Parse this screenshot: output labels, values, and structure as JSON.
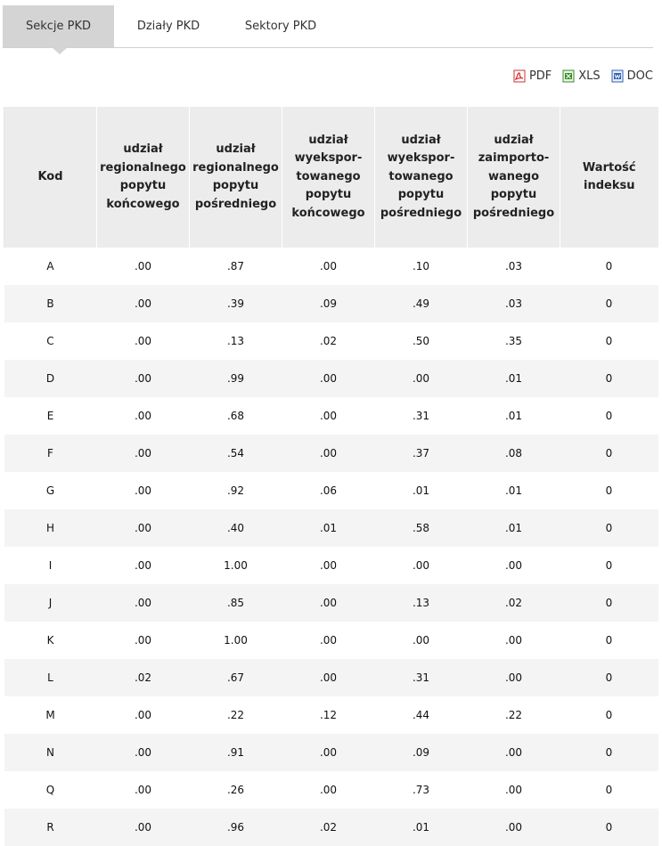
{
  "tabs": [
    {
      "label": "Sekcje PKD",
      "active": true
    },
    {
      "label": "Działy PKD",
      "active": false
    },
    {
      "label": "Sektory PKD",
      "active": false
    }
  ],
  "export": {
    "pdf": "PDF",
    "xls": "XLS",
    "doc": "DOC"
  },
  "colors": {
    "positive": "#5a9e1e",
    "negative": "#d4184a",
    "neutral": "#111111",
    "header_bg": "#ececec",
    "active_tab": "#d4d4d4"
  },
  "table": {
    "headers": [
      [
        "Kod"
      ],
      [
        "udział",
        "regionalnego",
        "popytu",
        "końcowego"
      ],
      [
        "udział",
        "regionalnego",
        "popytu",
        "pośredniego"
      ],
      [
        "udział",
        "wyekspor-",
        "towanego",
        "popytu",
        "końcowego"
      ],
      [
        "udział",
        "wyekspor-",
        "towanego",
        "popytu",
        "pośredniego"
      ],
      [
        "udział",
        "zaimporto-",
        "wanego",
        "popytu",
        "pośredniego"
      ],
      [
        "Wartość",
        "indeksu"
      ]
    ],
    "rows": [
      {
        "kod": "A",
        "cells": [
          [
            ".00",
            "neu"
          ],
          [
            ".87",
            "pos"
          ],
          [
            ".00",
            "neu"
          ],
          [
            ".10",
            "neg"
          ],
          [
            ".03",
            "neg"
          ],
          [
            "0",
            "neu"
          ]
        ]
      },
      {
        "kod": "B",
        "cells": [
          [
            ".00",
            "neu"
          ],
          [
            ".39",
            "neg"
          ],
          [
            ".09",
            "pos"
          ],
          [
            ".49",
            "pos"
          ],
          [
            ".03",
            "pos"
          ],
          [
            "0",
            "neu"
          ]
        ]
      },
      {
        "kod": "C",
        "cells": [
          [
            ".00",
            "neu"
          ],
          [
            ".13",
            "neu"
          ],
          [
            ".02",
            "neu"
          ],
          [
            ".50",
            "pos"
          ],
          [
            ".35",
            "neg"
          ],
          [
            "0",
            "neu"
          ]
        ]
      },
      {
        "kod": "D",
        "cells": [
          [
            ".00",
            "neu"
          ],
          [
            ".99",
            "neg"
          ],
          [
            ".00",
            "neu"
          ],
          [
            ".00",
            "neu"
          ],
          [
            ".01",
            "pos"
          ],
          [
            "0",
            "neu"
          ]
        ]
      },
      {
        "kod": "E",
        "cells": [
          [
            ".00",
            "neu"
          ],
          [
            ".68",
            "pos"
          ],
          [
            ".00",
            "neg"
          ],
          [
            ".31",
            "neg"
          ],
          [
            ".01",
            "neu"
          ],
          [
            "0",
            "neu"
          ]
        ]
      },
      {
        "kod": "F",
        "cells": [
          [
            ".00",
            "neu"
          ],
          [
            ".54",
            "neg"
          ],
          [
            ".00",
            "neu"
          ],
          [
            ".37",
            "pos"
          ],
          [
            ".08",
            "pos"
          ],
          [
            "0",
            "neu"
          ]
        ]
      },
      {
        "kod": "G",
        "cells": [
          [
            ".00",
            "neu"
          ],
          [
            ".92",
            "neg"
          ],
          [
            ".06",
            "neu"
          ],
          [
            ".01",
            "neu"
          ],
          [
            ".01",
            "pos"
          ],
          [
            "0",
            "neu"
          ]
        ]
      },
      {
        "kod": "H",
        "cells": [
          [
            ".00",
            "neu"
          ],
          [
            ".40",
            "pos"
          ],
          [
            ".01",
            "pos"
          ],
          [
            ".58",
            "neg"
          ],
          [
            ".01",
            "pos"
          ],
          [
            "0",
            "neu"
          ]
        ]
      },
      {
        "kod": "I",
        "cells": [
          [
            ".00",
            "neu"
          ],
          [
            "1.00",
            "pos"
          ],
          [
            ".00",
            "neu"
          ],
          [
            ".00",
            "neu"
          ],
          [
            ".00",
            "neu"
          ],
          [
            "0",
            "neu"
          ]
        ]
      },
      {
        "kod": "J",
        "cells": [
          [
            ".00",
            "neu"
          ],
          [
            ".85",
            "pos"
          ],
          [
            ".00",
            "neu"
          ],
          [
            ".13",
            "pos"
          ],
          [
            ".02",
            "neg"
          ],
          [
            "0",
            "neu"
          ]
        ]
      },
      {
        "kod": "K",
        "cells": [
          [
            ".00",
            "neg"
          ],
          [
            "1.00",
            "pos"
          ],
          [
            ".00",
            "neu"
          ],
          [
            ".00",
            "neu"
          ],
          [
            ".00",
            "neu"
          ],
          [
            "0",
            "neu"
          ]
        ]
      },
      {
        "kod": "L",
        "cells": [
          [
            ".02",
            "pos"
          ],
          [
            ".67",
            "neg"
          ],
          [
            ".00",
            "neu"
          ],
          [
            ".31",
            "pos"
          ],
          [
            ".00",
            "neu"
          ],
          [
            "0",
            "neu"
          ]
        ]
      },
      {
        "kod": "M",
        "cells": [
          [
            ".00",
            "neu"
          ],
          [
            ".22",
            "pos"
          ],
          [
            ".12",
            "pos"
          ],
          [
            ".44",
            "neg"
          ],
          [
            ".22",
            "neu"
          ],
          [
            "0",
            "neu"
          ]
        ]
      },
      {
        "kod": "N",
        "cells": [
          [
            ".00",
            "neu"
          ],
          [
            ".91",
            "neg"
          ],
          [
            ".00",
            "neu"
          ],
          [
            ".09",
            "pos"
          ],
          [
            ".00",
            "neu"
          ],
          [
            "0",
            "neu"
          ]
        ]
      },
      {
        "kod": "Q",
        "cells": [
          [
            ".00",
            "neu"
          ],
          [
            ".26",
            "pos"
          ],
          [
            ".00",
            "neu"
          ],
          [
            ".73",
            "neg"
          ],
          [
            ".00",
            "neu"
          ],
          [
            "0",
            "neu"
          ]
        ]
      },
      {
        "kod": "R",
        "cells": [
          [
            ".00",
            "neu"
          ],
          [
            ".96",
            "neg"
          ],
          [
            ".02",
            "pos"
          ],
          [
            ".01",
            "pos"
          ],
          [
            ".00",
            "neu"
          ],
          [
            "0",
            "neu"
          ]
        ]
      }
    ]
  }
}
